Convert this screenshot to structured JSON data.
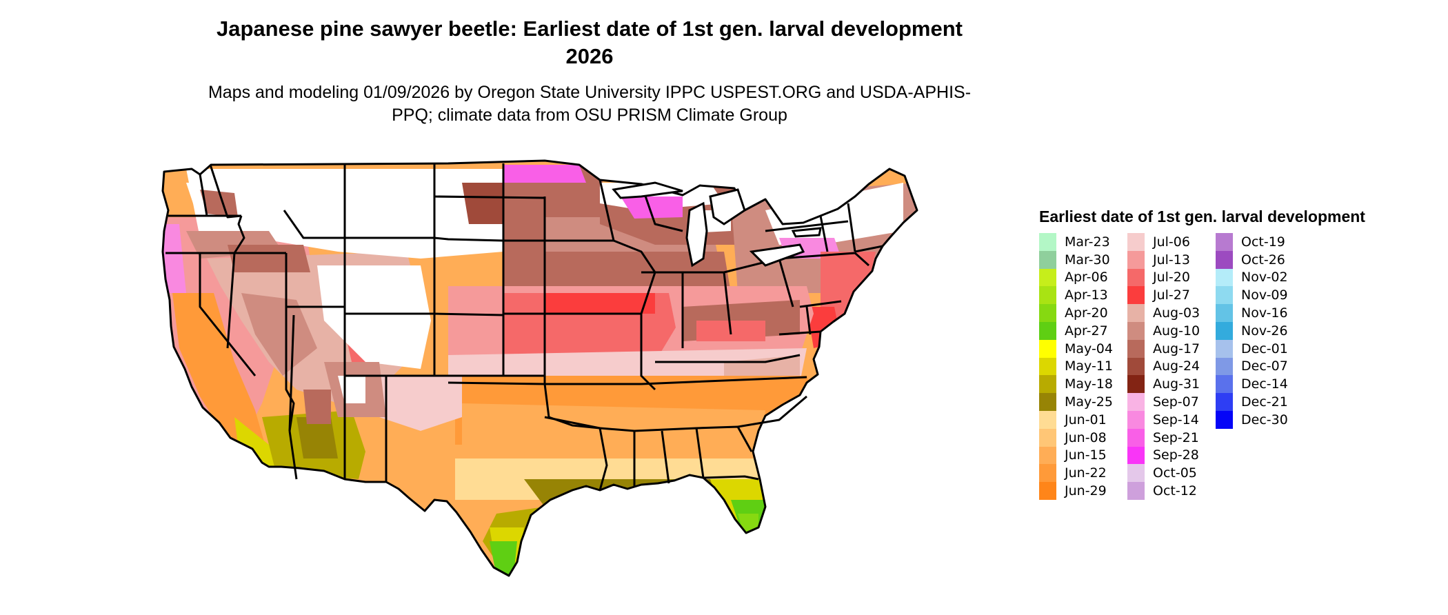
{
  "title": "Japanese pine sawyer beetle: Earliest date of 1st gen. larval development 2026",
  "subtitle": "Maps and modeling 01/09/2026 by Oregon State University IPPC USPEST.ORG and USDA-APHIS-PPQ; climate data from OSU PRISM Climate Group",
  "legend": {
    "title": "Earliest date of 1st gen. larval development",
    "columns": [
      [
        {
          "label": "Mar-23",
          "color": "#b3f7c6"
        },
        {
          "label": "Mar-30",
          "color": "#8fcf9c"
        },
        {
          "label": "Apr-06",
          "color": "#c6ee1b"
        },
        {
          "label": "Apr-13",
          "color": "#a9e313"
        },
        {
          "label": "Apr-20",
          "color": "#86d911"
        },
        {
          "label": "Apr-27",
          "color": "#5fcf13"
        },
        {
          "label": "May-04",
          "color": "#ffff00"
        },
        {
          "label": "May-11",
          "color": "#dcd700"
        },
        {
          "label": "May-18",
          "color": "#b8ab00"
        },
        {
          "label": "May-25",
          "color": "#978405"
        },
        {
          "label": "Jun-01",
          "color": "#ffdc94"
        },
        {
          "label": "Jun-08",
          "color": "#ffc676"
        },
        {
          "label": "Jun-15",
          "color": "#ffad56"
        },
        {
          "label": "Jun-22",
          "color": "#ff9a39"
        },
        {
          "label": "Jun-29",
          "color": "#ff8519"
        }
      ],
      [
        {
          "label": "Jul-06",
          "color": "#f6cccc"
        },
        {
          "label": "Jul-13",
          "color": "#f59a9a"
        },
        {
          "label": "Jul-20",
          "color": "#f56969"
        },
        {
          "label": "Jul-27",
          "color": "#fb3d3d"
        },
        {
          "label": "Aug-03",
          "color": "#e7b2a6"
        },
        {
          "label": "Aug-10",
          "color": "#cf8c80"
        },
        {
          "label": "Aug-17",
          "color": "#b86a5c"
        },
        {
          "label": "Aug-24",
          "color": "#a04a3a"
        },
        {
          "label": "Aug-31",
          "color": "#832414"
        },
        {
          "label": "Sep-07",
          "color": "#f9b3e4"
        },
        {
          "label": "Sep-14",
          "color": "#f989e0"
        },
        {
          "label": "Sep-21",
          "color": "#f95fe7"
        },
        {
          "label": "Sep-28",
          "color": "#f935f7"
        },
        {
          "label": "Oct-05",
          "color": "#e4c8ea"
        },
        {
          "label": "Oct-12",
          "color": "#cea0dc"
        }
      ],
      [
        {
          "label": "Oct-19",
          "color": "#b77ad0"
        },
        {
          "label": "Oct-26",
          "color": "#9c4bc0"
        },
        {
          "label": "Nov-02",
          "color": "#b4ecf9"
        },
        {
          "label": "Nov-09",
          "color": "#8edaf0"
        },
        {
          "label": "Nov-16",
          "color": "#63c3e6"
        },
        {
          "label": "Nov-26",
          "color": "#33abdd"
        },
        {
          "label": "Dec-01",
          "color": "#a6c1ec"
        },
        {
          "label": "Dec-07",
          "color": "#7f99e6"
        },
        {
          "label": "Dec-14",
          "color": "#5a71ec"
        },
        {
          "label": "Dec-21",
          "color": "#2e3ef4"
        },
        {
          "label": "Dec-30",
          "color": "#0505f7"
        }
      ]
    ]
  }
}
